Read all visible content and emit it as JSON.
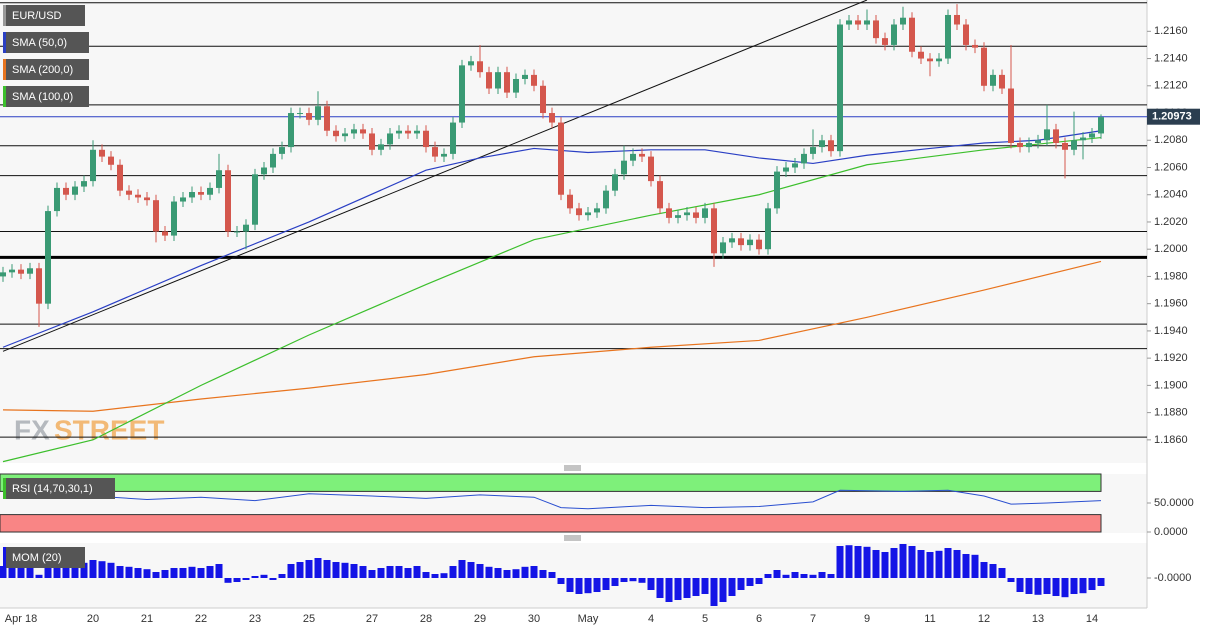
{
  "chart_data": [
    {
      "type": "candlestick",
      "symbol": "EUR/USD",
      "up_color": "#3a9a74",
      "down_color": "#d4574d",
      "categories": [
        null,
        null,
        "Apr 18",
        null,
        null,
        null,
        null,
        null,
        null,
        null,
        "20",
        null,
        null,
        null,
        null,
        null,
        "21",
        null,
        null,
        null,
        null,
        null,
        "22",
        null,
        null,
        null,
        null,
        null,
        "23",
        null,
        null,
        null,
        null,
        null,
        "25",
        null,
        null,
        null,
        null,
        null,
        null,
        "27",
        null,
        null,
        null,
        null,
        null,
        "28",
        null,
        null,
        null,
        null,
        null,
        "29",
        null,
        null,
        null,
        null,
        null,
        "30",
        null,
        null,
        null,
        null,
        null,
        "May",
        null,
        null,
        null,
        null,
        null,
        null,
        "4",
        null,
        null,
        null,
        null,
        null,
        "5",
        null,
        null,
        null,
        null,
        null,
        "6",
        null,
        null,
        null,
        null,
        null,
        "7",
        null,
        null,
        null,
        null,
        null,
        "9",
        null,
        null,
        null,
        null,
        null,
        null,
        "11",
        null,
        null,
        null,
        null,
        null,
        "12",
        null,
        null,
        null,
        null,
        null,
        "13",
        null,
        null,
        null,
        null,
        null,
        "14",
        null
      ],
      "open": [
        1.198,
        1.1983,
        1.1985,
        1.1982,
        1.1986,
        1.196,
        1.2028,
        1.2045,
        1.204,
        1.2046,
        1.205,
        1.2073,
        1.2068,
        1.2062,
        1.2043,
        1.204,
        1.2038,
        1.2036,
        1.2013,
        1.201,
        1.2035,
        1.2038,
        1.2042,
        1.204,
        1.2045,
        1.2058,
        1.2013,
        1.2013,
        1.2018,
        1.2055,
        1.206,
        1.207,
        1.2075,
        1.21,
        1.21,
        1.2095,
        1.2105,
        1.2087,
        1.2083,
        1.2085,
        1.2088,
        1.2085,
        1.2073,
        1.2077,
        1.2085,
        1.2087,
        1.2085,
        1.2087,
        1.2075,
        1.2068,
        1.207,
        1.2093,
        1.2135,
        1.2138,
        1.213,
        1.2118,
        1.213,
        1.2115,
        1.2125,
        1.2128,
        1.212,
        1.21,
        1.2093,
        1.204,
        1.203,
        1.2025,
        1.2027,
        1.203,
        1.2043,
        1.2055,
        1.2065,
        1.207,
        1.2068,
        1.205,
        1.203,
        1.2023,
        1.2025,
        1.2027,
        1.2023,
        1.203,
        1.1997,
        1.2005,
        1.2008,
        1.2003,
        1.2007,
        1.2,
        1.203,
        1.2057,
        1.206,
        1.2063,
        1.207,
        1.2075,
        1.208,
        1.2072,
        1.2165,
        1.2168,
        1.2165,
        1.2168,
        1.2155,
        1.215,
        1.2165,
        1.217,
        1.2145,
        1.214,
        1.2138,
        1.214,
        1.2172,
        1.2165,
        1.215,
        1.2148,
        1.212,
        1.2128,
        1.2118,
        1.2078,
        1.2075,
        1.2078,
        1.208,
        1.2088,
        1.2078,
        1.2073,
        1.208,
        1.2082,
        1.2085
      ],
      "high": [
        1.1987,
        1.1989,
        1.1989,
        1.199,
        1.199,
        1.2032,
        1.2049,
        1.2049,
        1.205,
        1.2054,
        1.208,
        1.2077,
        1.2072,
        1.2066,
        1.2047,
        1.2044,
        1.2042,
        1.204,
        1.2017,
        1.2039,
        1.2042,
        1.2046,
        1.2046,
        1.2049,
        1.207,
        1.2062,
        1.2017,
        1.2022,
        1.2059,
        1.2064,
        1.2074,
        1.2079,
        1.2104,
        1.2104,
        1.2104,
        1.2116,
        1.2109,
        1.2091,
        1.2089,
        1.2092,
        1.2092,
        1.2089,
        1.2081,
        1.2089,
        1.2091,
        1.2091,
        1.2091,
        1.2091,
        1.2079,
        1.2074,
        1.2097,
        1.2139,
        1.2142,
        1.215,
        1.2134,
        1.2134,
        1.2134,
        1.2129,
        1.2132,
        1.2132,
        1.2124,
        1.2104,
        1.2097,
        1.2044,
        1.2034,
        1.2031,
        1.2034,
        1.2047,
        1.2059,
        1.2076,
        1.2074,
        1.2074,
        1.2072,
        1.2054,
        1.2034,
        1.2029,
        1.2031,
        1.2031,
        1.2034,
        1.2034,
        1.2009,
        1.2012,
        1.2012,
        1.2011,
        1.2011,
        1.2034,
        1.2061,
        1.2064,
        1.2067,
        1.2074,
        1.2088,
        1.2084,
        1.2084,
        1.2169,
        1.2172,
        1.2172,
        1.2176,
        1.2172,
        1.2159,
        1.2169,
        1.2178,
        1.2174,
        1.2149,
        1.2144,
        1.2144,
        1.2176,
        1.218,
        1.2169,
        1.2154,
        1.2152,
        1.2132,
        1.2132,
        1.215,
        1.2082,
        1.2082,
        1.2084,
        1.2106,
        1.2092,
        1.2082,
        1.2101,
        1.2086,
        1.2089,
        1.2099
      ],
      "low": [
        1.1976,
        1.1979,
        1.1978,
        1.1978,
        1.1943,
        1.1956,
        1.2024,
        1.2036,
        1.2036,
        1.2042,
        1.2046,
        1.2064,
        1.2058,
        1.2039,
        1.2036,
        1.2034,
        1.2032,
        1.2005,
        1.2006,
        1.2006,
        1.2031,
        1.2034,
        1.2036,
        1.2036,
        1.2041,
        1.2009,
        1.2009,
        1.2,
        1.2014,
        1.2051,
        1.2056,
        1.2066,
        1.2071,
        1.2096,
        1.2091,
        1.2091,
        1.2083,
        1.2079,
        1.2079,
        1.2081,
        1.2081,
        1.2069,
        1.2069,
        1.2073,
        1.2081,
        1.2081,
        1.2081,
        1.2071,
        1.2064,
        1.2064,
        1.2066,
        1.2089,
        1.2131,
        1.2126,
        1.2114,
        1.2114,
        1.2111,
        1.2111,
        1.2121,
        1.2116,
        1.2096,
        1.2089,
        1.2036,
        1.2026,
        1.2021,
        1.2021,
        1.2023,
        1.2026,
        1.2039,
        1.2051,
        1.2061,
        1.2064,
        1.2046,
        1.2026,
        1.2019,
        1.2019,
        1.2021,
        1.2019,
        1.2019,
        1.1987,
        1.1993,
        1.2001,
        1.1999,
        1.1999,
        1.1996,
        1.1996,
        1.2026,
        1.2053,
        1.2056,
        1.2059,
        1.2066,
        1.2071,
        1.2068,
        1.2068,
        1.2161,
        1.2161,
        1.2161,
        1.2151,
        1.2146,
        1.2146,
        1.2161,
        1.2141,
        1.2136,
        1.2127,
        1.2134,
        1.2136,
        1.2161,
        1.2146,
        1.2144,
        1.2116,
        1.2116,
        1.2114,
        1.2074,
        1.2071,
        1.2071,
        1.2074,
        1.2076,
        1.2074,
        1.2052,
        1.2069,
        1.2066,
        1.2078,
        1.2081
      ],
      "close": [
        1.1983,
        1.1985,
        1.1982,
        1.1986,
        1.196,
        1.2028,
        1.2045,
        1.204,
        1.2046,
        1.205,
        1.2073,
        1.2068,
        1.2062,
        1.2043,
        1.204,
        1.2038,
        1.2036,
        1.2013,
        1.201,
        1.2035,
        1.2038,
        1.2042,
        1.204,
        1.2045,
        1.2058,
        1.2013,
        1.2013,
        1.2018,
        1.2055,
        1.206,
        1.207,
        1.2075,
        1.21,
        1.21,
        1.2095,
        1.2105,
        1.2087,
        1.2083,
        1.2085,
        1.2088,
        1.2085,
        1.2073,
        1.2077,
        1.2085,
        1.2087,
        1.2085,
        1.2087,
        1.2075,
        1.2068,
        1.207,
        1.2093,
        1.2135,
        1.2138,
        1.213,
        1.2118,
        1.213,
        1.2115,
        1.2125,
        1.2128,
        1.212,
        1.21,
        1.2093,
        1.204,
        1.203,
        1.2025,
        1.2027,
        1.203,
        1.2043,
        1.2055,
        1.2065,
        1.207,
        1.2068,
        1.205,
        1.203,
        1.2023,
        1.2025,
        1.2027,
        1.2023,
        1.203,
        1.1997,
        1.2005,
        1.2008,
        1.2003,
        1.2007,
        1.2,
        1.203,
        1.2057,
        1.206,
        1.2063,
        1.207,
        1.2075,
        1.208,
        1.2072,
        1.2165,
        1.2168,
        1.2165,
        1.2168,
        1.2155,
        1.215,
        1.2165,
        1.217,
        1.2145,
        1.214,
        1.2138,
        1.214,
        1.2172,
        1.2165,
        1.215,
        1.2148,
        1.212,
        1.2128,
        1.2118,
        1.2078,
        1.2075,
        1.2078,
        1.208,
        1.2088,
        1.2078,
        1.2073,
        1.208,
        1.2082,
        1.2085,
        1.2097
      ],
      "series": [
        {
          "name": "SMA (50,0)",
          "color": "#2a3fc4",
          "x": [
            0,
            10,
            22,
            34,
            47,
            53,
            59,
            65,
            72,
            78,
            84,
            90,
            96,
            103,
            109,
            115,
            122
          ],
          "values": [
            1.1928,
            1.1954,
            1.1988,
            1.202,
            1.2058,
            1.2067,
            1.2074,
            1.2071,
            1.2073,
            1.2073,
            1.2067,
            1.2063,
            1.2069,
            1.2074,
            1.2078,
            1.208,
            1.2087
          ]
        },
        {
          "name": "SMA (200,0)",
          "color": "#e8741e",
          "x": [
            0,
            10,
            22,
            34,
            47,
            59,
            72,
            84,
            96,
            109,
            122
          ],
          "values": [
            1.1882,
            1.1881,
            1.189,
            1.1898,
            1.1908,
            1.1921,
            1.1928,
            1.1933,
            1.195,
            1.197,
            1.1991
          ]
        },
        {
          "name": "SMA (100,0)",
          "color": "#3cbf2c",
          "x": [
            0,
            10,
            22,
            34,
            47,
            59,
            72,
            84,
            96,
            109,
            122
          ],
          "values": [
            1.1844,
            1.186,
            1.19,
            1.1937,
            1.1974,
            1.2007,
            1.2025,
            1.204,
            1.2062,
            1.2073,
            1.2082
          ]
        }
      ],
      "levels": [
        1.2181,
        1.2149,
        1.2106,
        1.2076,
        1.2054,
        1.2013,
        1.1945,
        1.1927,
        1.1862
      ],
      "strong_level": 1.1994,
      "trendline": {
        "x": [
          0,
          96
        ],
        "values": [
          1.1925,
          1.2183
        ]
      },
      "last_price": 1.20973,
      "watermark": [
        "FX",
        "STREET"
      ],
      "ylim": [
        1.1843,
        1.2183
      ],
      "yticks": [
        {
          "value": 1.216,
          "label": "1.2160"
        },
        {
          "value": 1.214,
          "label": "1.2140"
        },
        {
          "value": 1.212,
          "label": "1.2120"
        },
        {
          "value": 1.21,
          "label": "1.2100"
        },
        {
          "value": 1.208,
          "label": "1.2080"
        },
        {
          "value": 1.206,
          "label": "1.2060"
        },
        {
          "value": 1.204,
          "label": "1.2040"
        },
        {
          "value": 1.202,
          "label": "1.2020"
        },
        {
          "value": 1.2,
          "label": "1.2000"
        },
        {
          "value": 1.198,
          "label": "1.1980"
        },
        {
          "value": 1.196,
          "label": "1.1960"
        },
        {
          "value": 1.194,
          "label": "1.1940"
        },
        {
          "value": 1.192,
          "label": "1.1920"
        },
        {
          "value": 1.19,
          "label": "1.1900"
        },
        {
          "value": 1.188,
          "label": "1.1880"
        },
        {
          "value": 1.186,
          "label": "1.1860"
        }
      ]
    },
    {
      "type": "line",
      "name": "RSI (14,70,30,1)",
      "color": "#2a4fd0",
      "overbought": 70,
      "oversold": 30,
      "overbought_color": "#7ef07a",
      "oversold_color": "#f98585",
      "x": [
        0,
        5,
        10,
        16,
        22,
        28,
        34,
        41,
        47,
        53,
        59,
        62,
        65,
        72,
        78,
        84,
        90,
        93,
        100,
        105,
        109,
        112,
        116,
        122
      ],
      "values": [
        60,
        58,
        62,
        56,
        60,
        54,
        66,
        62,
        58,
        64,
        60,
        42,
        40,
        46,
        42,
        44,
        52,
        72,
        70,
        72,
        62,
        48,
        50,
        54
      ],
      "ylim": [
        0,
        100
      ],
      "yticks": [
        {
          "value": 50,
          "label": "50.0000"
        },
        {
          "value": 0,
          "label": "0.0000"
        }
      ]
    },
    {
      "type": "bar",
      "name": "MOM (20)",
      "color": "#1414e6",
      "values": [
        0.003,
        0.0028,
        0.0025,
        0.003,
        0.0008,
        0.0035,
        0.004,
        0.003,
        0.0035,
        0.0038,
        0.0045,
        0.0042,
        0.0038,
        0.003,
        0.0028,
        0.0025,
        0.0022,
        0.0015,
        0.002,
        0.0025,
        0.0025,
        0.0028,
        0.0025,
        0.003,
        0.0035,
        -0.0012,
        -0.001,
        -0.0005,
        0.0005,
        0.0008,
        -0.0005,
        0.001,
        0.0035,
        0.004,
        0.0045,
        0.005,
        0.0045,
        0.004,
        0.0038,
        0.0035,
        0.003,
        0.002,
        0.0025,
        0.003,
        0.003,
        0.0025,
        0.003,
        0.0015,
        0.001,
        0.0012,
        0.003,
        0.0045,
        0.004,
        0.0035,
        0.0028,
        0.0025,
        0.002,
        0.0022,
        0.0028,
        0.003,
        0.002,
        0.0015,
        -0.0015,
        -0.0035,
        -0.004,
        -0.0038,
        -0.0035,
        -0.003,
        -0.002,
        -0.001,
        -0.0008,
        -0.0012,
        -0.003,
        -0.005,
        -0.006,
        -0.0055,
        -0.005,
        -0.0045,
        -0.004,
        -0.007,
        -0.006,
        -0.0045,
        -0.003,
        -0.002,
        -0.0015,
        0.001,
        0.002,
        0.0008,
        0.0015,
        0.001,
        0.0008,
        0.0015,
        0.001,
        0.008,
        0.0082,
        0.008,
        0.0078,
        0.007,
        0.0065,
        0.0075,
        0.0085,
        0.008,
        0.007,
        0.0065,
        0.0068,
        0.0075,
        0.007,
        0.006,
        0.0058,
        0.004,
        0.0035,
        0.0025,
        -0.001,
        -0.0035,
        -0.004,
        -0.0042,
        -0.004,
        -0.0045,
        -0.0048,
        -0.004,
        -0.0038,
        -0.003,
        -0.002
      ],
      "ylim": [
        -0.0075,
        0.00875
      ],
      "yticks": [
        {
          "value": 0,
          "label": "-0.0000"
        }
      ]
    }
  ]
}
